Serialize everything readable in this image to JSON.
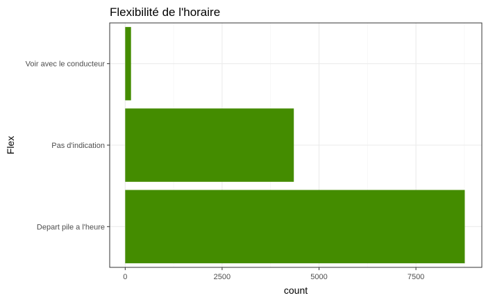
{
  "chart_data": {
    "type": "bar",
    "orientation": "horizontal",
    "title": "Flexibilité de l'horaire",
    "xlabel": "count",
    "ylabel": "Flex",
    "categories": [
      "Depart pile a l'heure",
      "Pas d'indication",
      "Voir avec le conducteur"
    ],
    "values": [
      8760,
      4350,
      150
    ],
    "xlim": [
      -400,
      9200
    ],
    "xticks": [
      "0",
      "2500",
      "5000",
      "7500"
    ],
    "xtick_values": [
      0,
      2500,
      5000,
      7500
    ],
    "bar_color": "#448c00",
    "grid": true,
    "legend": "none"
  }
}
